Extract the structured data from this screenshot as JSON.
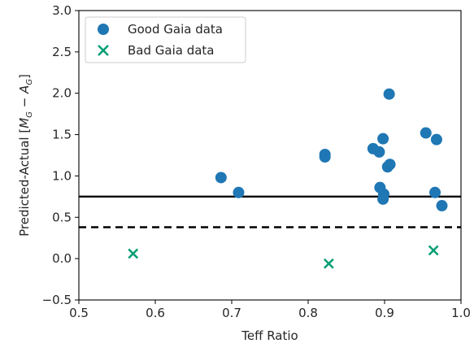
{
  "chart_data": {
    "type": "scatter",
    "title": "",
    "xlabel": "Teff Ratio",
    "ylabel": "Predicted-Actual [M_G − A_G]",
    "ylabel_parts": {
      "prefix": "Predicted-Actual [",
      "m": "M",
      "m_sub": "G",
      "minus": " − ",
      "a": "A",
      "a_sub": "G",
      "suffix": "]"
    },
    "xlim": [
      0.5,
      1.0
    ],
    "ylim": [
      -0.5,
      3.0
    ],
    "xticks": [
      "0.5",
      "0.6",
      "0.7",
      "0.8",
      "0.9",
      "1.0"
    ],
    "yticks": [
      "−0.5",
      "0.0",
      "0.5",
      "1.0",
      "1.5",
      "2.0",
      "2.5",
      "3.0"
    ],
    "grid": false,
    "legend_position": "top-left",
    "series": [
      {
        "name": "Good Gaia data",
        "marker": "circle",
        "color": "#1f77b4",
        "points": [
          {
            "x": 0.686,
            "y": 0.98
          },
          {
            "x": 0.709,
            "y": 0.8
          },
          {
            "x": 0.822,
            "y": 1.26
          },
          {
            "x": 0.822,
            "y": 1.23
          },
          {
            "x": 0.885,
            "y": 1.33
          },
          {
            "x": 0.893,
            "y": 1.29
          },
          {
            "x": 0.898,
            "y": 1.45
          },
          {
            "x": 0.906,
            "y": 1.99
          },
          {
            "x": 0.904,
            "y": 1.11
          },
          {
            "x": 0.907,
            "y": 1.14
          },
          {
            "x": 0.894,
            "y": 0.86
          },
          {
            "x": 0.899,
            "y": 0.78
          },
          {
            "x": 0.898,
            "y": 0.72
          },
          {
            "x": 0.954,
            "y": 1.52
          },
          {
            "x": 0.968,
            "y": 1.44
          },
          {
            "x": 0.966,
            "y": 0.8
          },
          {
            "x": 0.975,
            "y": 0.64
          }
        ]
      },
      {
        "name": "Bad Gaia data",
        "marker": "x",
        "color": "#009e73",
        "points": [
          {
            "x": 0.571,
            "y": 0.06
          },
          {
            "x": 0.827,
            "y": -0.06
          },
          {
            "x": 0.964,
            "y": 0.1
          }
        ]
      }
    ],
    "reference_lines": [
      {
        "y": 0.75,
        "style": "solid",
        "color": "#000000"
      },
      {
        "y": 0.38,
        "style": "dashed",
        "color": "#000000"
      }
    ]
  }
}
